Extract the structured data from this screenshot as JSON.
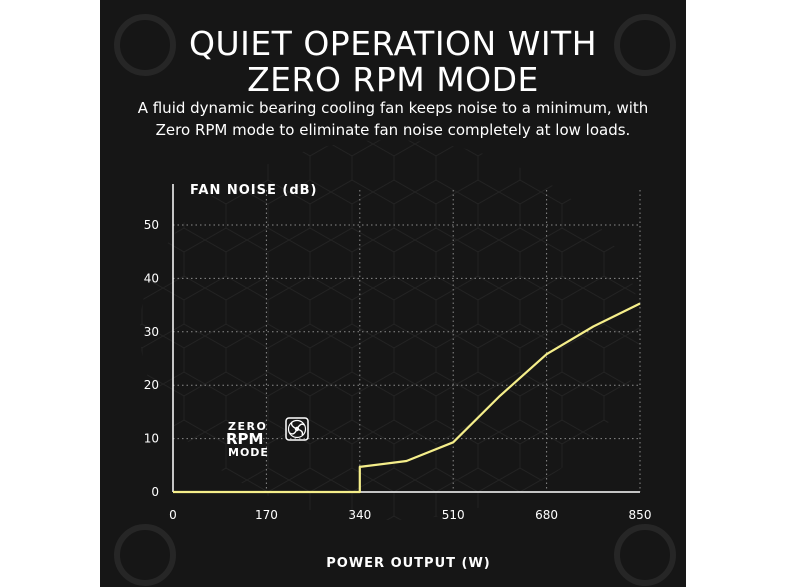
{
  "title_lines": [
    "QUIET OPERATION WITH",
    "ZERO RPM MODE"
  ],
  "subtitle_lines": [
    "A fluid dynamic bearing cooling fan keeps noise to a minimum, with",
    "Zero RPM mode to eliminate fan noise completely at low loads."
  ],
  "badge": {
    "line1": "ZERO",
    "line2": "RPM",
    "line3": "MODE",
    "icon": "fan-icon"
  },
  "colors": {
    "background": "#161616",
    "line": "#f5ee8a",
    "text": "#ffffff"
  },
  "chart_data": {
    "type": "line",
    "xlabel": "POWER OUTPUT (W)",
    "ylabel": "FAN NOISE (dB)",
    "xlim": [
      0,
      850
    ],
    "ylim": [
      0,
      55
    ],
    "x_ticks": [
      0,
      170,
      340,
      510,
      680,
      850
    ],
    "y_ticks": [
      0,
      10,
      20,
      30,
      40,
      50
    ],
    "grid": true,
    "series": [
      {
        "x": [
          0,
          340,
          340,
          425,
          510,
          595,
          680,
          765,
          850
        ],
        "y": [
          0,
          0,
          4.7,
          5.8,
          9.3,
          18,
          25.8,
          31,
          35.3
        ]
      }
    ]
  }
}
